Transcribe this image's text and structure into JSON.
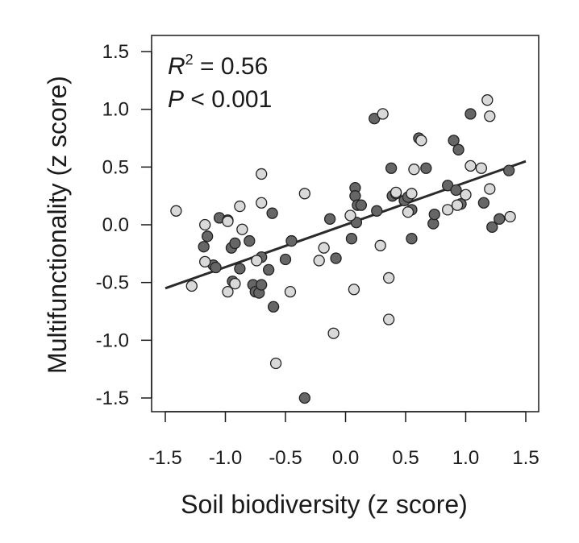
{
  "chart_data": {
    "type": "scatter",
    "title": "",
    "xlabel": "Soil biodiversity (z score)",
    "ylabel": "Multifunctionality (z score)",
    "xlim": [
      -1.5,
      1.5
    ],
    "ylim": [
      -1.5,
      1.5
    ],
    "x_ticks": [
      "-1.5",
      "-1.0",
      "-0.5",
      "0.0",
      "0.5",
      "1.0",
      "1.5"
    ],
    "y_ticks": [
      "1.5",
      "1.0",
      "0.5",
      "0.0",
      "-0.5",
      "-1.0",
      "-1.5"
    ],
    "annotations": {
      "r2_symbol": "R",
      "r2_sup": "2",
      "r2_text": " = 0.56",
      "p_symbol": "P",
      "p_text": " < 0.001"
    },
    "fit_line": {
      "x": [
        -1.5,
        1.5
      ],
      "y": [
        -0.55,
        0.55
      ]
    },
    "colors": {
      "dark": "#666666",
      "light": "#d9d9d9",
      "stroke": "#222222",
      "line": "#2a2a2a"
    },
    "series": [
      {
        "name": "dark",
        "points": [
          [
            -1.18,
            -0.19
          ],
          [
            -1.15,
            -0.1
          ],
          [
            -1.1,
            -0.35
          ],
          [
            -1.08,
            -0.37
          ],
          [
            -1.05,
            0.06
          ],
          [
            -0.98,
            0.04
          ],
          [
            -0.95,
            -0.2
          ],
          [
            -0.92,
            -0.16
          ],
          [
            -0.88,
            -0.38
          ],
          [
            -0.94,
            -0.49
          ],
          [
            -0.8,
            -0.14
          ],
          [
            -0.77,
            -0.52
          ],
          [
            -0.75,
            -0.58
          ],
          [
            -0.72,
            -0.59
          ],
          [
            -0.7,
            -0.52
          ],
          [
            -0.7,
            -0.28
          ],
          [
            -0.64,
            -0.39
          ],
          [
            -0.61,
            0.1
          ],
          [
            -0.6,
            -0.71
          ],
          [
            -0.5,
            -0.3
          ],
          [
            -0.45,
            -0.14
          ],
          [
            -0.34,
            -1.5
          ],
          [
            -0.13,
            0.05
          ],
          [
            -0.08,
            -0.29
          ],
          [
            0.05,
            -0.12
          ],
          [
            0.08,
            0.32
          ],
          [
            0.08,
            0.25
          ],
          [
            0.09,
            0.02
          ],
          [
            0.1,
            0.17
          ],
          [
            0.13,
            0.17
          ],
          [
            0.24,
            0.92
          ],
          [
            0.26,
            0.12
          ],
          [
            0.38,
            0.49
          ],
          [
            0.39,
            0.25
          ],
          [
            0.42,
            0.27
          ],
          [
            0.49,
            0.21
          ],
          [
            0.52,
            0.24
          ],
          [
            0.55,
            0.13
          ],
          [
            0.55,
            -0.12
          ],
          [
            0.61,
            0.75
          ],
          [
            0.67,
            0.49
          ],
          [
            0.73,
            0.01
          ],
          [
            0.74,
            0.09
          ],
          [
            0.85,
            0.34
          ],
          [
            0.9,
            0.73
          ],
          [
            0.92,
            0.3
          ],
          [
            0.94,
            0.65
          ],
          [
            0.96,
            0.18
          ],
          [
            1.04,
            0.96
          ],
          [
            1.15,
            0.19
          ],
          [
            1.22,
            -0.02
          ],
          [
            1.28,
            0.05
          ],
          [
            1.36,
            0.47
          ]
        ]
      },
      {
        "name": "light",
        "points": [
          [
            -1.41,
            0.12
          ],
          [
            -1.28,
            -0.53
          ],
          [
            -1.17,
            0.0
          ],
          [
            -1.17,
            -0.32
          ],
          [
            -0.98,
            0.03
          ],
          [
            -0.98,
            -0.58
          ],
          [
            -0.92,
            -0.51
          ],
          [
            -0.88,
            0.16
          ],
          [
            -0.86,
            -0.04
          ],
          [
            -0.74,
            -0.31
          ],
          [
            -0.7,
            0.19
          ],
          [
            -0.7,
            0.44
          ],
          [
            -0.58,
            -1.2
          ],
          [
            -0.46,
            -0.58
          ],
          [
            -0.34,
            0.27
          ],
          [
            -0.22,
            -0.31
          ],
          [
            -0.18,
            -0.2
          ],
          [
            -0.1,
            -0.94
          ],
          [
            0.04,
            0.08
          ],
          [
            0.07,
            -0.56
          ],
          [
            0.29,
            -0.18
          ],
          [
            0.31,
            0.96
          ],
          [
            0.36,
            -0.46
          ],
          [
            0.36,
            -0.82
          ],
          [
            0.42,
            0.28
          ],
          [
            0.52,
            0.11
          ],
          [
            0.55,
            0.27
          ],
          [
            0.57,
            0.48
          ],
          [
            0.63,
            0.73
          ],
          [
            0.85,
            0.13
          ],
          [
            0.93,
            0.17
          ],
          [
            1.0,
            0.26
          ],
          [
            1.04,
            0.51
          ],
          [
            1.13,
            0.49
          ],
          [
            1.18,
            1.08
          ],
          [
            1.2,
            0.94
          ],
          [
            1.2,
            0.31
          ],
          [
            1.37,
            0.07
          ]
        ]
      }
    ]
  }
}
